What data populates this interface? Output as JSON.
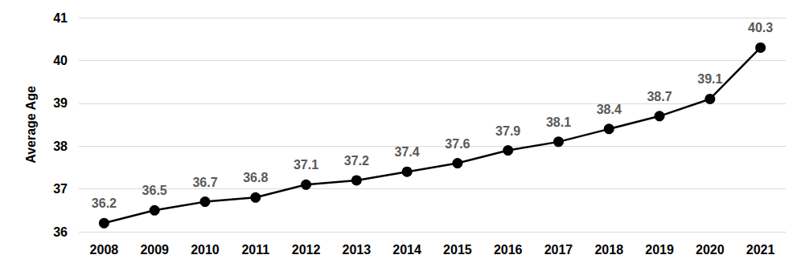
{
  "chart_data": {
    "type": "line",
    "y_label": "Average Age",
    "categories": [
      "2008",
      "2009",
      "2010",
      "2011",
      "2012",
      "2013",
      "2014",
      "2015",
      "2016",
      "2017",
      "2018",
      "2019",
      "2020",
      "2021"
    ],
    "values": [
      36.2,
      36.5,
      36.7,
      36.8,
      37.1,
      37.2,
      37.4,
      37.6,
      37.9,
      38.1,
      38.4,
      38.7,
      39.1,
      40.3
    ],
    "color": "#000000",
    "marker": "circle",
    "line_style": "solid",
    "ylim": [
      36,
      41
    ],
    "yticks": [
      36,
      37,
      38,
      39,
      40,
      41
    ],
    "grid": true,
    "data_labels": true
  }
}
